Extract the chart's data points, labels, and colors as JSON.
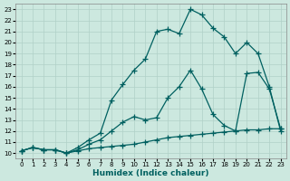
{
  "bg_color": "#cce8df",
  "grid_color": "#b0d0c8",
  "line_color": "#006060",
  "line_width": 0.9,
  "marker": "+",
  "marker_size": 4,
  "marker_edge_width": 0.9,
  "xlim": [
    -0.5,
    23.5
  ],
  "ylim": [
    9.5,
    23.5
  ],
  "xticks": [
    0,
    1,
    2,
    3,
    4,
    5,
    6,
    7,
    8,
    9,
    10,
    11,
    12,
    13,
    14,
    15,
    16,
    17,
    18,
    19,
    20,
    21,
    22,
    23
  ],
  "yticks": [
    10,
    11,
    12,
    13,
    14,
    15,
    16,
    17,
    18,
    19,
    20,
    21,
    22,
    23
  ],
  "xlabel": "Humidex (Indice chaleur)",
  "xlabel_fontsize": 6.5,
  "tick_fontsize": 5.0,
  "line1_x": [
    0,
    1,
    2,
    3,
    4,
    5,
    6,
    7,
    8,
    9,
    10,
    11,
    12,
    13,
    14,
    15,
    16,
    17,
    18,
    19,
    20,
    21,
    22,
    23
  ],
  "line1_y": [
    10.2,
    10.5,
    10.3,
    10.3,
    10.0,
    10.5,
    11.2,
    11.8,
    14.8,
    16.2,
    17.5,
    18.5,
    21.0,
    21.2,
    20.8,
    23.0,
    22.5,
    21.3,
    20.5,
    19.0,
    20.0,
    19.0,
    16.0,
    12.0
  ],
  "line2_x": [
    0,
    1,
    2,
    3,
    4,
    5,
    6,
    7,
    8,
    9,
    10,
    11,
    12,
    13,
    14,
    15,
    16,
    17,
    18,
    19,
    20,
    21,
    22,
    23
  ],
  "line2_y": [
    10.2,
    10.5,
    10.3,
    10.3,
    10.0,
    10.3,
    10.8,
    11.2,
    12.0,
    12.8,
    13.3,
    13.0,
    13.2,
    15.0,
    16.0,
    17.5,
    15.8,
    13.5,
    12.5,
    12.0,
    17.2,
    17.3,
    15.8,
    12.2
  ],
  "line3_x": [
    0,
    1,
    2,
    3,
    4,
    5,
    6,
    7,
    8,
    9,
    10,
    11,
    12,
    13,
    14,
    15,
    16,
    17,
    18,
    19,
    20,
    21,
    22,
    23
  ],
  "line3_y": [
    10.2,
    10.5,
    10.3,
    10.3,
    10.0,
    10.2,
    10.4,
    10.5,
    10.6,
    10.7,
    10.8,
    11.0,
    11.2,
    11.4,
    11.5,
    11.6,
    11.7,
    11.8,
    11.9,
    12.0,
    12.1,
    12.1,
    12.2,
    12.2
  ]
}
